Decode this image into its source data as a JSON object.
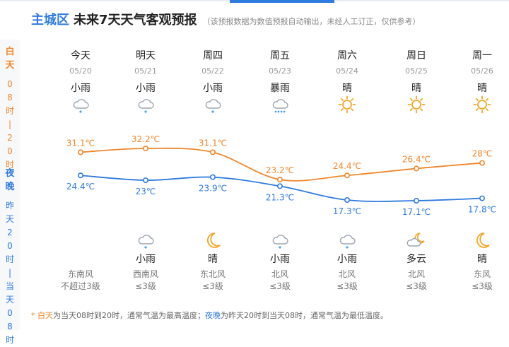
{
  "header": {
    "district": "主城区",
    "title": "未来7天天气客观预报",
    "note": "（该预报数据为数值预报自动输出，未经人工订正，仅供参考）"
  },
  "side_labels": {
    "day": {
      "big": "白天",
      "sub": "08时|20时"
    },
    "night": {
      "big": "夜晚",
      "sub": "昨天20时|当天08时"
    }
  },
  "days": [
    {
      "name": "今天",
      "date": "05/20",
      "day_weather": "小雨",
      "day_icon": "light-rain-icon",
      "night_weather": "",
      "night_icon": "",
      "wind_dir": "东南风",
      "wind_level": "不超过3级"
    },
    {
      "name": "明天",
      "date": "05/21",
      "day_weather": "小雨",
      "day_icon": "light-rain-icon",
      "night_weather": "小雨",
      "night_icon": "light-rain-icon",
      "wind_dir": "西南风",
      "wind_level": "≤3级"
    },
    {
      "name": "周四",
      "date": "05/22",
      "day_weather": "小雨",
      "day_icon": "light-rain-icon",
      "night_weather": "晴",
      "night_icon": "moon-icon",
      "wind_dir": "东北风",
      "wind_level": "≤3级"
    },
    {
      "name": "周五",
      "date": "05/23",
      "day_weather": "暴雨",
      "day_icon": "heavy-rain-icon",
      "night_weather": "小雨",
      "night_icon": "light-rain-icon",
      "wind_dir": "北风",
      "wind_level": "≤3级"
    },
    {
      "name": "周六",
      "date": "05/24",
      "day_weather": "晴",
      "day_icon": "sun-icon",
      "night_weather": "小雨",
      "night_icon": "light-rain-icon",
      "wind_dir": "北风",
      "wind_level": "≤3级"
    },
    {
      "name": "周日",
      "date": "05/25",
      "day_weather": "晴",
      "day_icon": "sun-icon",
      "night_weather": "多云",
      "night_icon": "partly-cloudy-night-icon",
      "wind_dir": "北风",
      "wind_level": "≤3级"
    },
    {
      "name": "周一",
      "date": "05/26",
      "day_weather": "晴",
      "day_icon": "sun-icon",
      "night_weather": "晴",
      "night_icon": "moon-icon",
      "wind_dir": "东风",
      "wind_level": "≤3级"
    }
  ],
  "chart_data": {
    "type": "line",
    "categories": [
      "05/20",
      "05/21",
      "05/22",
      "05/23",
      "05/24",
      "05/25",
      "05/26"
    ],
    "unit": "℃",
    "series": [
      {
        "name": "白天最高温",
        "color": "#f0872b",
        "values": [
          31.1,
          32.2,
          31.1,
          23.2,
          24.4,
          26.4,
          28
        ],
        "labels": [
          "31.1℃",
          "32.2℃",
          "31.1℃",
          "23.2℃",
          "24.4℃",
          "26.4℃",
          "28℃"
        ]
      },
      {
        "name": "夜晚最低温",
        "color": "#2f7be0",
        "values": [
          24.4,
          23,
          23.9,
          21.3,
          17.3,
          17.1,
          17.8
        ],
        "labels": [
          "24.4℃",
          "23℃",
          "23.9℃",
          "21.3℃",
          "17.3℃",
          "17.1℃",
          "17.8℃"
        ]
      }
    ],
    "ylim": [
      15,
      34
    ]
  },
  "footnote": {
    "day_word": "* 白天",
    "day_desc": "为当天08时到20时，通常气温为最高温度；",
    "night_word": "夜晚",
    "night_desc": "为昨天20时到当天08时，通常气温为最低温度。"
  }
}
